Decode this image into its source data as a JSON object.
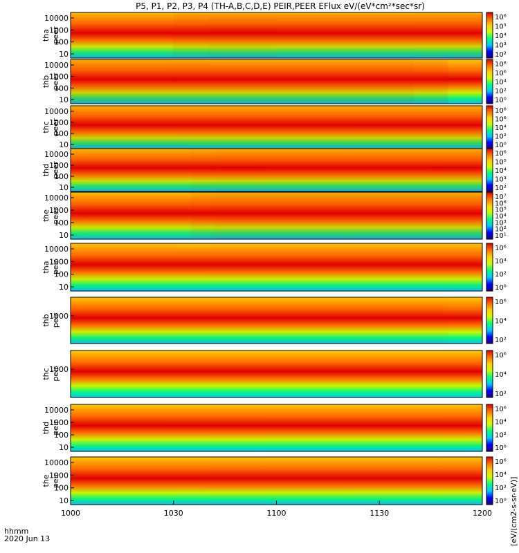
{
  "chart_data": {
    "type": "heatmap",
    "title": "P5, P1, P2, P3, P4 (TH-A,B,C,D,E) PEIR,PEER EFlux eV/(eV*cm²*sec*sr)",
    "x_ticks": [
      "1000",
      "1030",
      "1100",
      "1130",
      "1200"
    ],
    "x_label_line1": "hhmm",
    "x_label_line2": "2020 Jun 13",
    "colorbar_label": "[eV/(cm2-s-sr-eV)]",
    "colorscale": [
      "#20007f",
      "#0000ff",
      "#00c8ff",
      "#00ff80",
      "#c8ff00",
      "#ffd200",
      "#ff7000",
      "#e00000"
    ],
    "panels": [
      {
        "probe": "tha",
        "species": "peer",
        "y_ticks": [
          "10000",
          "1000",
          "100",
          "10"
        ],
        "cb_ticks": [
          "10⁶",
          "10⁵",
          "10⁴",
          "10³",
          "10²"
        ],
        "profile": [
          {
            "t": 0,
            "level": 0.72
          },
          {
            "t": 30,
            "level": 0.78
          },
          {
            "t": 40,
            "level": 0.92
          },
          {
            "t": 60,
            "level": 0.85
          },
          {
            "t": 100,
            "level": 0.88
          },
          {
            "t": 120,
            "level": 0.86
          }
        ]
      },
      {
        "probe": "thb",
        "species": "peer",
        "y_ticks": [
          "10000",
          "1000",
          "100",
          "10"
        ],
        "cb_ticks": [
          "10⁸",
          "10⁶",
          "10⁴",
          "10²",
          "10⁰"
        ],
        "profile": [
          {
            "t": 0,
            "level": 0.9
          },
          {
            "t": 100,
            "level": 0.9
          },
          {
            "t": 110,
            "level": 0.75
          },
          {
            "t": 120,
            "level": 0.55
          }
        ]
      },
      {
        "probe": "thc",
        "species": "peer",
        "y_ticks": [
          "10000",
          "1000",
          "100",
          "10"
        ],
        "cb_ticks": [
          "10⁸",
          "10⁶",
          "10⁴",
          "10²",
          "10⁰"
        ],
        "profile": [
          {
            "t": 0,
            "level": 0.88
          },
          {
            "t": 120,
            "level": 0.88
          }
        ]
      },
      {
        "probe": "thd",
        "species": "peer",
        "y_ticks": [
          "10000",
          "1000",
          "100",
          "10"
        ],
        "cb_ticks": [
          "10⁶",
          "10⁵",
          "10⁴",
          "10³",
          "10²"
        ],
        "profile": [
          {
            "t": 0,
            "level": 0.78
          },
          {
            "t": 35,
            "level": 0.8
          },
          {
            "t": 42,
            "level": 0.9
          },
          {
            "t": 120,
            "level": 0.84
          }
        ]
      },
      {
        "probe": "the",
        "species": "peer",
        "y_ticks": [
          "10000",
          "1000",
          "100",
          "10"
        ],
        "cb_ticks": [
          "10⁷",
          "10⁶",
          "10⁵",
          "10⁴",
          "10³",
          "10²",
          "10¹"
        ],
        "profile": [
          {
            "t": 0,
            "level": 0.72
          },
          {
            "t": 35,
            "level": 0.76
          },
          {
            "t": 42,
            "level": 0.92
          },
          {
            "t": 120,
            "level": 0.85
          }
        ]
      },
      {
        "probe": "tha",
        "species": "peir",
        "y_ticks": [
          "10000",
          "1000",
          "100",
          "10"
        ],
        "cb_ticks": [
          "10⁶",
          "10⁴",
          "10²",
          "10⁰"
        ],
        "profile": [
          {
            "t": 0,
            "level": 0.62
          },
          {
            "t": 40,
            "level": 0.7
          },
          {
            "t": 120,
            "level": 0.64
          }
        ]
      },
      {
        "probe": "thb",
        "species": "peir",
        "y_ticks": [
          "1000"
        ],
        "cb_ticks": [
          "10⁶",
          "10⁴",
          "10²"
        ],
        "profile": [
          {
            "t": 0,
            "level": 0.66
          },
          {
            "t": 110,
            "level": 0.66
          },
          {
            "t": 120,
            "level": 0.55
          }
        ]
      },
      {
        "probe": "thc",
        "species": "peir",
        "y_ticks": [
          "1000"
        ],
        "cb_ticks": [
          "10⁶",
          "10⁴",
          "10²"
        ],
        "profile": [
          {
            "t": 0,
            "level": 0.6
          },
          {
            "t": 120,
            "level": 0.6
          }
        ]
      },
      {
        "probe": "thd",
        "species": "peir",
        "y_ticks": [
          "10000",
          "1000",
          "100",
          "10"
        ],
        "cb_ticks": [
          "10⁶",
          "10⁴",
          "10²",
          "10⁰"
        ],
        "profile": [
          {
            "t": 0,
            "level": 0.6
          },
          {
            "t": 40,
            "level": 0.66
          },
          {
            "t": 120,
            "level": 0.62
          }
        ]
      },
      {
        "probe": "the",
        "species": "peir",
        "y_ticks": [
          "10000",
          "1000",
          "100",
          "10"
        ],
        "cb_ticks": [
          "10⁶",
          "10⁴",
          "10²",
          "10⁰"
        ],
        "profile": [
          {
            "t": 0,
            "level": 0.6
          },
          {
            "t": 40,
            "level": 0.68
          },
          {
            "t": 120,
            "level": 0.63
          }
        ]
      }
    ]
  }
}
